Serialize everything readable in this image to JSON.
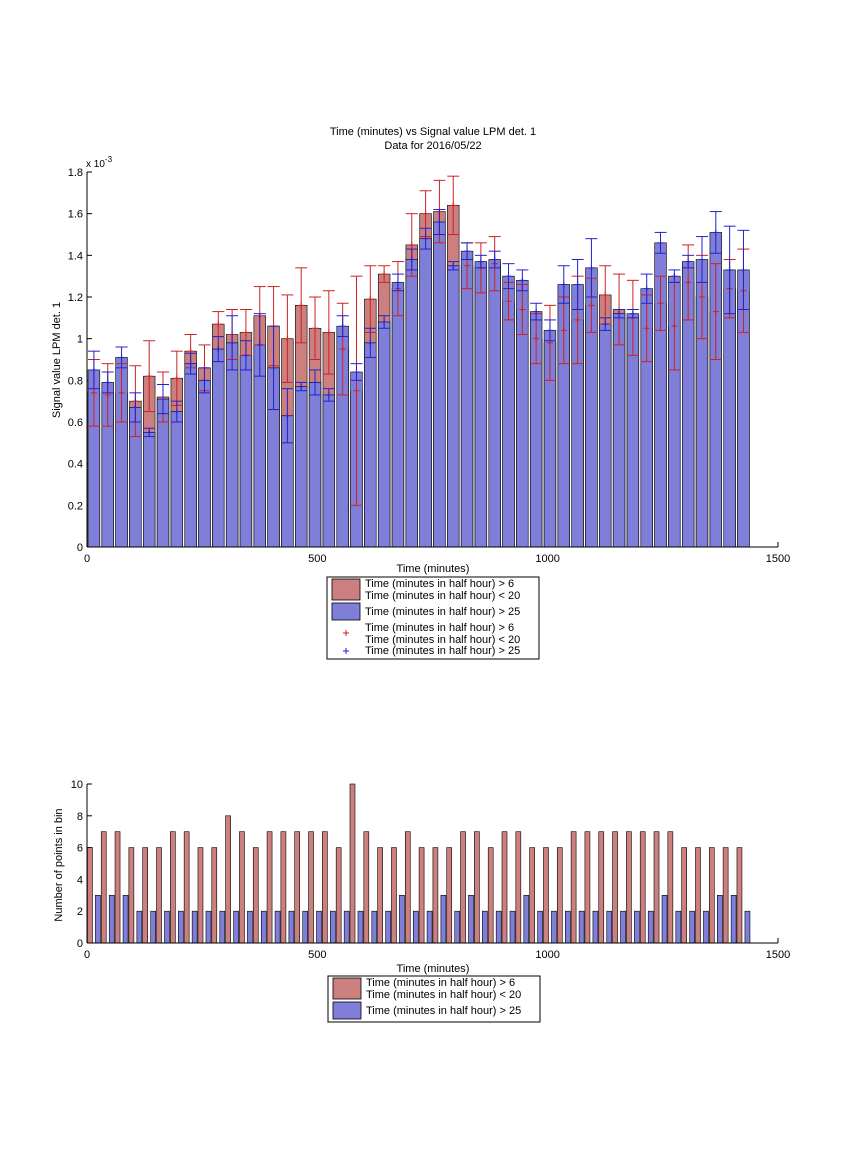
{
  "chart_data": [
    {
      "type": "bar",
      "title": "Time (minutes) vs Signal value LPM det. 1",
      "subtitle": "Data for 2016/05/22",
      "xlabel": "Time (minutes)",
      "ylabel": "Signal value LPM det. 1",
      "exponent_label": "x 10",
      "exponent_power": "-3",
      "xlim": [
        0,
        1500
      ],
      "ylim": [
        0,
        1.8
      ],
      "xticks": [
        0,
        500,
        1000,
        1500
      ],
      "yticks": [
        0,
        0.2,
        0.4,
        0.6,
        0.8,
        1,
        1.2,
        1.4,
        1.6,
        1.8
      ],
      "grid": false,
      "legend_position": "below",
      "x": [
        15,
        45,
        75,
        105,
        135,
        165,
        195,
        225,
        255,
        285,
        315,
        345,
        375,
        405,
        435,
        465,
        495,
        525,
        555,
        585,
        615,
        645,
        675,
        705,
        735,
        765,
        795,
        825,
        855,
        885,
        915,
        945,
        975,
        1005,
        1035,
        1065,
        1095,
        1125,
        1155,
        1185,
        1215,
        1245,
        1275,
        1305,
        1335,
        1365,
        1395,
        1425
      ],
      "series": [
        {
          "name_lines": [
            "Time (minutes in half hour) > 6",
            "Time (minutes in half hour) < 20"
          ],
          "color": "#cc7f7f",
          "err_color": "#cc2222",
          "values": [
            0.74,
            0.73,
            0.74,
            0.7,
            0.82,
            0.72,
            0.81,
            0.94,
            0.86,
            1.07,
            1.02,
            1.03,
            1.11,
            1.06,
            1.0,
            1.16,
            1.05,
            1.03,
            0.95,
            0.75,
            1.19,
            1.31,
            1.24,
            1.45,
            1.6,
            1.61,
            1.64,
            1.35,
            1.34,
            1.36,
            1.18,
            1.14,
            1.0,
            0.98,
            1.04,
            1.09,
            1.16,
            1.21,
            1.14,
            1.1,
            1.05,
            1.17,
            1.06,
            1.27,
            1.2,
            1.13,
            1.24,
            1.23
          ],
          "err": [
            0.16,
            0.15,
            0.14,
            0.17,
            0.17,
            0.12,
            0.13,
            0.08,
            0.11,
            0.06,
            0.12,
            0.11,
            0.14,
            0.19,
            0.21,
            0.18,
            0.15,
            0.2,
            0.22,
            0.55,
            0.16,
            0.04,
            0.13,
            0.15,
            0.11,
            0.15,
            0.14,
            0.11,
            0.12,
            0.13,
            0.09,
            0.12,
            0.12,
            0.18,
            0.16,
            0.21,
            0.13,
            0.14,
            0.17,
            0.18,
            0.16,
            0.13,
            0.21,
            0.18,
            0.2,
            0.23,
            0.14,
            0.2
          ]
        },
        {
          "name_lines": [
            "Time (minutes in half hour) > 25"
          ],
          "color": "#7f7fd9",
          "err_color": "#2222cc",
          "values": [
            0.85,
            0.79,
            0.91,
            0.67,
            0.55,
            0.71,
            0.65,
            0.88,
            0.8,
            0.95,
            0.98,
            0.92,
            0.97,
            0.86,
            0.63,
            0.77,
            0.79,
            0.73,
            1.06,
            0.84,
            0.98,
            1.08,
            1.27,
            1.38,
            1.48,
            1.56,
            1.35,
            1.42,
            1.37,
            1.38,
            1.3,
            1.28,
            1.13,
            1.04,
            1.26,
            1.26,
            1.34,
            1.07,
            1.12,
            1.12,
            1.24,
            1.46,
            1.3,
            1.37,
            1.38,
            1.51,
            1.33,
            1.33
          ],
          "err": [
            0.09,
            0.05,
            0.05,
            0.07,
            0.02,
            0.07,
            0.05,
            0.05,
            0.06,
            0.06,
            0.13,
            0.07,
            0.15,
            0.2,
            0.13,
            0.02,
            0.06,
            0.03,
            0.05,
            0.04,
            0.07,
            0.03,
            0.04,
            0.05,
            0.05,
            0.06,
            0.02,
            0.04,
            0.03,
            0.04,
            0.06,
            0.05,
            0.04,
            0.05,
            0.09,
            0.12,
            0.14,
            0.03,
            0.02,
            0.02,
            0.07,
            0.05,
            0.03,
            0.03,
            0.11,
            0.1,
            0.21,
            0.19
          ]
        }
      ],
      "legend": [
        {
          "kind": "patch",
          "lines": [
            "Time (minutes in half hour) > 6",
            "Time (minutes in half hour) < 20"
          ],
          "color": "#cc7f7f"
        },
        {
          "kind": "patch",
          "lines": [
            "Time (minutes in half hour) > 25"
          ],
          "color": "#7f7fd9"
        },
        {
          "kind": "marker",
          "lines": [
            "Time (minutes in half hour) > 6",
            "Time (minutes in half hour) < 20"
          ],
          "color": "#cc2222"
        },
        {
          "kind": "marker",
          "lines": [
            "Time (minutes in half hour) > 25"
          ],
          "color": "#2222cc"
        }
      ]
    },
    {
      "type": "bar",
      "xlabel": "Time (minutes)",
      "ylabel": "Number of points in bin",
      "xlim": [
        0,
        1500
      ],
      "ylim": [
        0,
        10
      ],
      "xticks": [
        0,
        500,
        1000,
        1500
      ],
      "yticks": [
        0,
        2,
        4,
        6,
        8,
        10
      ],
      "grid": false,
      "legend_position": "below",
      "x": [
        15,
        45,
        75,
        105,
        135,
        165,
        195,
        225,
        255,
        285,
        315,
        345,
        375,
        405,
        435,
        465,
        495,
        525,
        555,
        585,
        615,
        645,
        675,
        705,
        735,
        765,
        795,
        825,
        855,
        885,
        915,
        945,
        975,
        1005,
        1035,
        1065,
        1095,
        1125,
        1155,
        1185,
        1215,
        1245,
        1275,
        1305,
        1335,
        1365,
        1395,
        1425
      ],
      "series": [
        {
          "name_lines": [
            "Time (minutes in half hour) > 6",
            "Time (minutes in half hour) < 20"
          ],
          "color": "#cc7f7f",
          "values": [
            6,
            7,
            7,
            6,
            6,
            6,
            7,
            7,
            6,
            6,
            8,
            7,
            6,
            7,
            7,
            7,
            7,
            7,
            6,
            10,
            7,
            6,
            6,
            7,
            6,
            6,
            6,
            7,
            7,
            6,
            7,
            7,
            6,
            6,
            6,
            7,
            7,
            7,
            7,
            7,
            7,
            7,
            7,
            6,
            6,
            6,
            6,
            6
          ]
        },
        {
          "name_lines": [
            "Time (minutes in half hour) > 25"
          ],
          "color": "#7f7fd9",
          "values": [
            3,
            3,
            3,
            2,
            2,
            2,
            2,
            2,
            2,
            2,
            2,
            2,
            2,
            2,
            2,
            2,
            2,
            2,
            2,
            2,
            2,
            2,
            3,
            2,
            2,
            3,
            2,
            3,
            2,
            2,
            2,
            3,
            2,
            2,
            2,
            2,
            2,
            2,
            2,
            2,
            2,
            3,
            2,
            2,
            2,
            3,
            3,
            2
          ]
        }
      ],
      "legend": [
        {
          "kind": "patch",
          "lines": [
            "Time (minutes in half hour) > 6",
            "Time (minutes in half hour) < 20"
          ],
          "color": "#cc7f7f"
        },
        {
          "kind": "patch",
          "lines": [
            "Time (minutes in half hour) > 25"
          ],
          "color": "#7f7fd9"
        }
      ]
    }
  ]
}
